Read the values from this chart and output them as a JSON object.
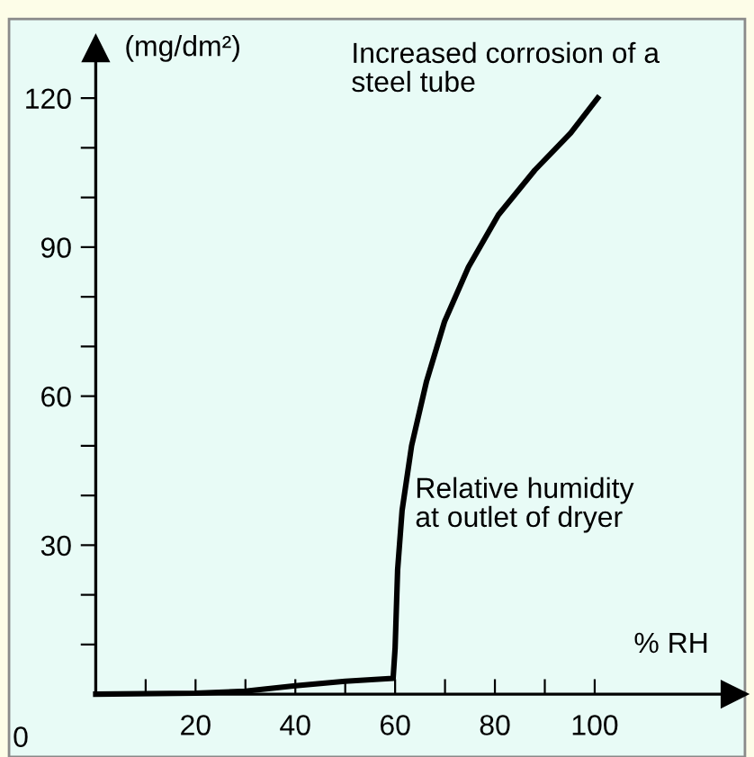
{
  "chart_data": {
    "type": "line",
    "xlabel": "% RH",
    "ylabel": "(mg/dm²)",
    "annotations": [
      "Increased corrosion of a\nsteel tube",
      "Relative humidity\nat outlet of dryer",
      "0"
    ],
    "series": [
      {
        "color": "#000000",
        "x": [
          0,
          20,
          30,
          40,
          50,
          59.6,
          60,
          60.5,
          61.4,
          63.3,
          66.3,
          69.9,
          74.7,
          80.7,
          88,
          95.2,
          100.6
        ],
        "values": [
          0,
          0.2,
          0.6,
          1.7,
          2.6,
          3.2,
          9.3,
          25,
          37,
          50,
          63,
          75,
          86,
          96.5,
          105.5,
          113,
          120
        ]
      }
    ],
    "xlim": [
      0,
      128
    ],
    "ylim": [
      0,
      130
    ],
    "xticks": [
      {
        "value": 10,
        "label": null
      },
      20,
      {
        "value": 30,
        "label": null
      },
      40,
      {
        "value": 50,
        "label": null
      },
      60,
      {
        "value": 70,
        "label": null
      },
      80,
      {
        "value": 90,
        "label": null
      },
      100
    ],
    "yticks": [
      {
        "value": 10,
        "label": null
      },
      {
        "value": 20,
        "label": null
      },
      30,
      {
        "value": 40,
        "label": null
      },
      {
        "value": 50,
        "label": null
      },
      60,
      {
        "value": 70,
        "label": null
      },
      {
        "value": 80,
        "label": null
      },
      90,
      {
        "value": 100,
        "label": null
      },
      {
        "value": 110,
        "label": null
      },
      120
    ],
    "grid": false,
    "legend": false,
    "marker": "none",
    "line_style": "solid"
  }
}
